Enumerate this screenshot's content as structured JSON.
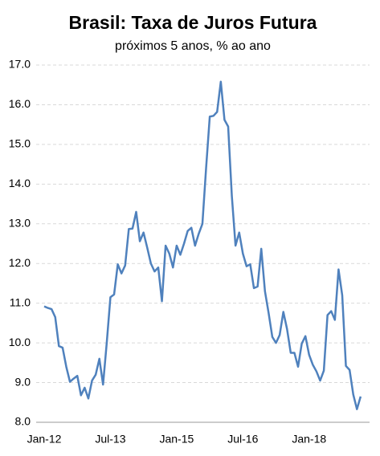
{
  "chart_data": {
    "type": "line",
    "title": "Brasil: Taxa de Juros Futura",
    "subtitle": "próximos  5 anos,  % ao ano",
    "categories": [
      "Jan-12",
      null,
      null,
      null,
      null,
      null,
      null,
      null,
      null,
      null,
      null,
      null,
      null,
      null,
      null,
      null,
      null,
      null,
      "Jul-13",
      null,
      null,
      null,
      null,
      null,
      null,
      null,
      null,
      null,
      null,
      null,
      null,
      null,
      null,
      null,
      null,
      null,
      "Jan-15",
      null,
      null,
      null,
      null,
      null,
      null,
      null,
      null,
      null,
      null,
      null,
      null,
      null,
      null,
      null,
      null,
      null,
      "Jul-16",
      null,
      null,
      null,
      null,
      null,
      null,
      null,
      null,
      null,
      null,
      null,
      null,
      null,
      null,
      null,
      null,
      null,
      "Jan-18",
      null,
      null,
      null,
      null,
      null,
      null,
      null,
      null,
      null,
      null,
      null,
      null,
      null,
      null
    ],
    "series": [
      {
        "name": "Taxa de Juros Futura",
        "color": "#4f81bd",
        "values": [
          10.92,
          10.88,
          10.85,
          10.65,
          9.92,
          9.88,
          9.4,
          9.02,
          9.1,
          9.17,
          8.68,
          8.87,
          8.6,
          9.05,
          9.2,
          9.6,
          8.95,
          10.0,
          11.15,
          11.22,
          11.98,
          11.75,
          11.95,
          12.87,
          12.88,
          13.3,
          12.56,
          12.78,
          12.4,
          12.0,
          11.8,
          11.9,
          11.05,
          12.45,
          12.25,
          11.9,
          12.45,
          12.22,
          12.5,
          12.82,
          12.9,
          12.45,
          12.75,
          13.0,
          14.4,
          15.7,
          15.72,
          15.82,
          16.58,
          15.62,
          15.45,
          13.7,
          12.45,
          12.78,
          12.25,
          11.93,
          11.98,
          11.38,
          11.42,
          12.37,
          11.3,
          10.75,
          10.15,
          10.0,
          10.2,
          10.78,
          10.35,
          9.75,
          9.75,
          9.4,
          9.98,
          10.17,
          9.7,
          9.45,
          9.28,
          9.05,
          9.3,
          10.7,
          10.8,
          10.58,
          11.85,
          11.2,
          9.42,
          9.32,
          8.7,
          8.33,
          8.65
        ]
      }
    ],
    "ylim": [
      8,
      17
    ],
    "yticks": [
      {
        "value": 8,
        "label": "8.0"
      },
      {
        "value": 9,
        "label": "9.0"
      },
      {
        "value": 10,
        "label": "10.0"
      },
      {
        "value": 11,
        "label": "11.0"
      },
      {
        "value": 12,
        "label": "12.0"
      },
      {
        "value": 13,
        "label": "13.0"
      },
      {
        "value": 14,
        "label": "14.0"
      },
      {
        "value": 15,
        "label": "15.0"
      },
      {
        "value": 16,
        "label": "16.0"
      },
      {
        "value": 17,
        "label": "17.0"
      }
    ],
    "grid": true
  }
}
